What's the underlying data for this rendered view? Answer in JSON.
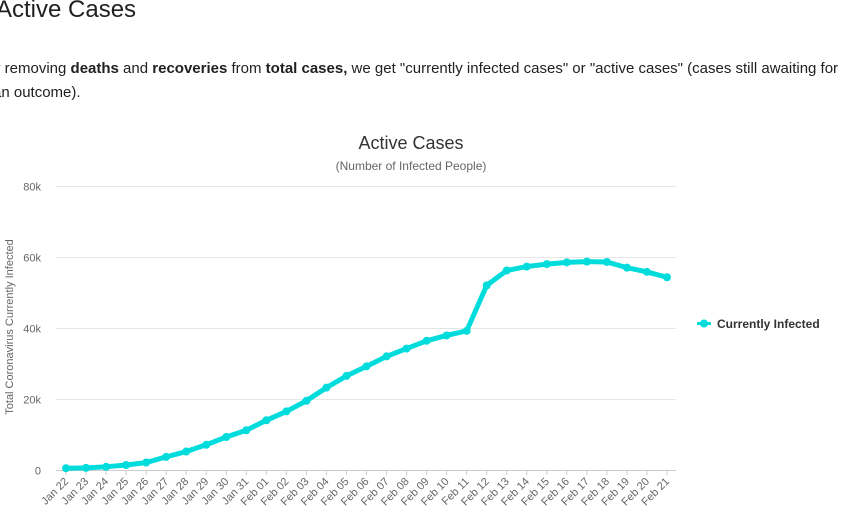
{
  "article": {
    "heading": "Active Cases",
    "intro": {
      "p1": "y removing ",
      "b1": "deaths",
      "p2": " and ",
      "b2": "recoveries",
      "p3": " from ",
      "b3": "total cases,",
      "p4": " we get \"currently infected cases\" or \"active cases\" (cases still awaiting for an outcome)."
    }
  },
  "colors": {
    "series": "#00dcdc",
    "grid": "#e6e6e6",
    "axis": "#cccccc"
  },
  "chart_data": {
    "type": "line",
    "title": "Active Cases",
    "subtitle": "(Number of Infected People)",
    "ylabel": "Total Coronavirus Currently Infected",
    "xlabel": "",
    "ylim": [
      0,
      80000
    ],
    "yticks": [
      0,
      20000,
      40000,
      60000,
      80000
    ],
    "ytick_labels": [
      "0",
      "20k",
      "40k",
      "60k",
      "80k"
    ],
    "grid": true,
    "legend_position": "right",
    "categories": [
      "Jan 22",
      "Jan 23",
      "Jan 24",
      "Jan 25",
      "Jan 26",
      "Jan 27",
      "Jan 28",
      "Jan 29",
      "Jan 30",
      "Jan 31",
      "Feb 01",
      "Feb 02",
      "Feb 03",
      "Feb 04",
      "Feb 05",
      "Feb 06",
      "Feb 07",
      "Feb 08",
      "Feb 09",
      "Feb 10",
      "Feb 11",
      "Feb 12",
      "Feb 13",
      "Feb 14",
      "Feb 15",
      "Feb 16",
      "Feb 17",
      "Feb 18",
      "Feb 19",
      "Feb 20",
      "Feb 21"
    ],
    "series": [
      {
        "name": "Currently Infected",
        "values": [
          500,
          600,
          900,
          1400,
          2100,
          3700,
          5200,
          7100,
          9300,
          11200,
          14000,
          16500,
          19500,
          23200,
          26500,
          29200,
          32000,
          34200,
          36400,
          37900,
          39200,
          52000,
          56200,
          57300,
          58000,
          58500,
          58700,
          58600,
          57000,
          55800,
          54300
        ]
      }
    ]
  }
}
